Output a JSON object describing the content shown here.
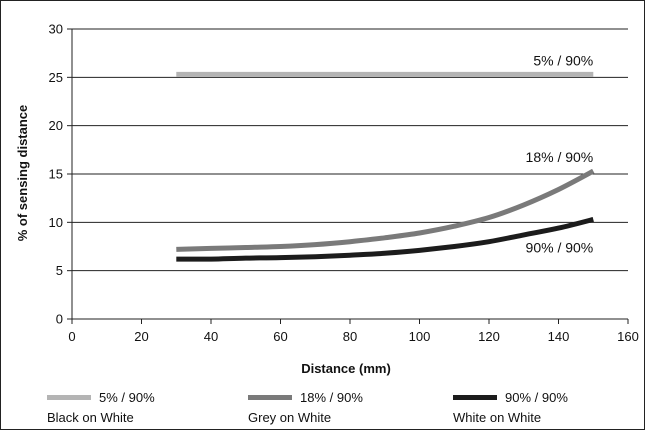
{
  "chart_data": {
    "type": "line",
    "title": "",
    "xlabel": "Distance (mm)",
    "ylabel": "% of sensing distance",
    "xlim": [
      0,
      160
    ],
    "ylim": [
      0,
      30
    ],
    "xticks": [
      0,
      20,
      40,
      60,
      80,
      100,
      120,
      140,
      160
    ],
    "yticks": [
      0,
      5,
      10,
      15,
      20,
      25,
      30
    ],
    "grid": "horizontal",
    "legend_position": "bottom",
    "series": [
      {
        "name": "5% / 90%",
        "description": "Black on White",
        "end_label": "5% / 90%",
        "color": "#b4b4b4",
        "x": [
          30,
          150
        ],
        "y": [
          25.3,
          25.3
        ]
      },
      {
        "name": "18% / 90%",
        "description": "Grey on White",
        "end_label": "18% / 90%",
        "color": "#7a7a7a",
        "x": [
          30,
          40,
          50,
          60,
          70,
          80,
          90,
          100,
          110,
          120,
          130,
          140,
          150
        ],
        "y": [
          7.2,
          7.3,
          7.4,
          7.5,
          7.7,
          8.0,
          8.4,
          8.9,
          9.6,
          10.5,
          11.8,
          13.4,
          15.3
        ]
      },
      {
        "name": "90% / 90%",
        "description": "White on White",
        "end_label": "90% / 90%",
        "color": "#1c1c1c",
        "x": [
          30,
          40,
          50,
          60,
          70,
          80,
          90,
          100,
          110,
          120,
          130,
          140,
          150
        ],
        "y": [
          6.2,
          6.2,
          6.3,
          6.35,
          6.45,
          6.6,
          6.8,
          7.1,
          7.5,
          8.0,
          8.7,
          9.4,
          10.3
        ]
      }
    ]
  }
}
